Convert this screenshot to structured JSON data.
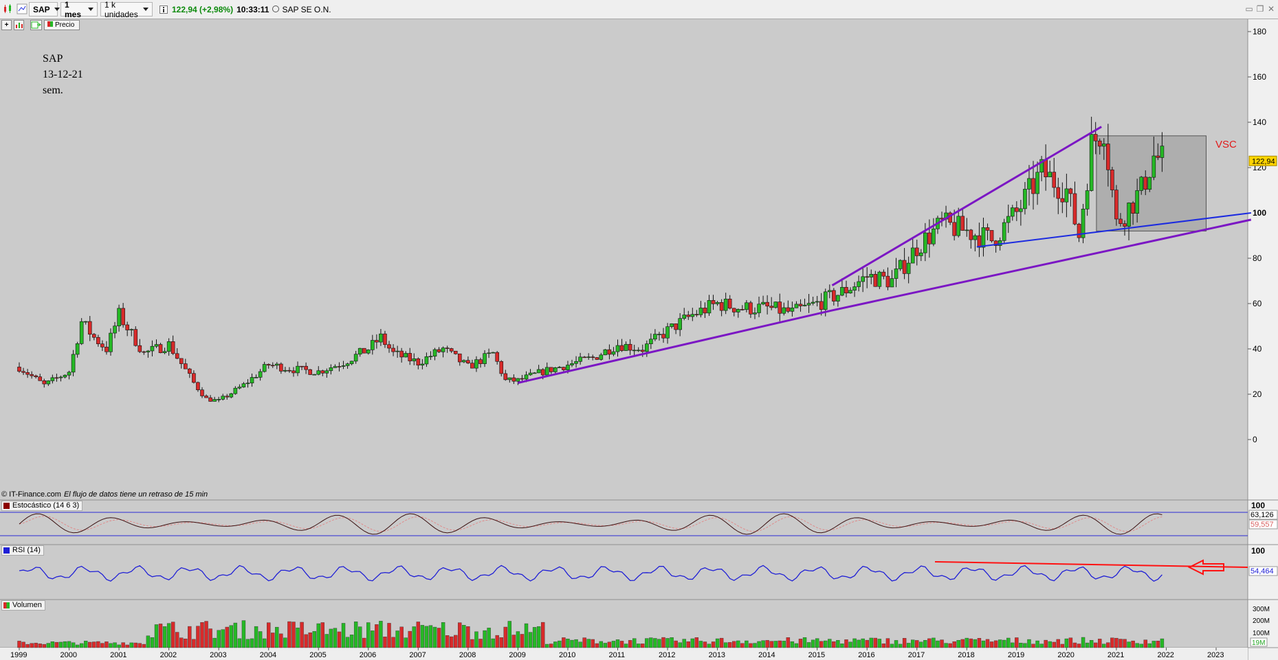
{
  "toolbar": {
    "symbol": "SAP",
    "period": "1 mes",
    "units": "1 k unidades",
    "last_quote": "122,94 (+2,98%)",
    "time": "10:33:11",
    "instrument_name": "SAP SE O.N.",
    "indicator_button": "Precio",
    "icons": [
      "candlestick-icon",
      "chart-type-icon",
      "bar-chart-icon",
      "indicator-icon",
      "add-icon",
      "window-restore-icon",
      "window-close-icon"
    ]
  },
  "annotations": {
    "note_lines": [
      "SAP",
      "13-12-21",
      "sem."
    ],
    "vsc_label": "VSC",
    "credit": "© IT-Finance.com",
    "credit_note": "El flujo de datos tiene un retraso de 15 min"
  },
  "panels": {
    "stochastic": {
      "label": "Estocástico (14 6 3)",
      "value_k": "63,126",
      "value_d": "59,557",
      "level": "100",
      "color": "#8b0000"
    },
    "rsi": {
      "label": "RSI (14)",
      "value": "54,464",
      "level": "100",
      "color": "#1f1fd6"
    },
    "volume": {
      "label": "Volumen",
      "ticks": [
        "300M",
        "200M",
        "100M"
      ],
      "value": "19M"
    }
  },
  "colors": {
    "up": "#25b825",
    "down": "#d82a2a",
    "purple_trend": "#7b16c4",
    "blue_trend": "#1c2be0",
    "rsi_trend": "#ff1111",
    "box_fill": "#a9a9a9"
  },
  "chart_data": {
    "type": "candlestick",
    "title": "",
    "y_ticks": [
      0,
      20,
      40,
      60,
      80,
      100,
      120,
      140,
      160,
      180
    ],
    "ylim": [
      -10,
      185
    ],
    "x_ticks": [
      "1999",
      "2000",
      "2001",
      "2002",
      "2003",
      "2004",
      "2005",
      "2006",
      "2007",
      "2008",
      "2009",
      "2010",
      "2011",
      "2012",
      "2013",
      "2014",
      "2015",
      "2016",
      "2017",
      "2018",
      "2019",
      "2020",
      "2021",
      "2022",
      "2023"
    ],
    "last_price_label": "122,94",
    "series": [
      {
        "name": "SAP",
        "x": [
          1999,
          1999.5,
          2000,
          2000.25,
          2000.5,
          2000.75,
          2001,
          2001.5,
          2002,
          2002.5,
          2002.75,
          2003,
          2003.5,
          2004,
          2004.5,
          2005,
          2005.5,
          2006,
          2006.25,
          2006.5,
          2007,
          2007.5,
          2008,
          2008.5,
          2008.75,
          2009,
          2009.5,
          2010,
          2010.5,
          2011,
          2011.5,
          2012,
          2012.5,
          2013,
          2013.5,
          2014,
          2014.5,
          2015,
          2015.5,
          2016,
          2016.5,
          2017,
          2017.5,
          2018,
          2018.5,
          2019,
          2019.5,
          2020,
          2020.25,
          2020.5,
          2020.75,
          2021,
          2021.5,
          2021.75,
          2021.95
        ],
        "y": [
          32,
          24,
          30,
          52,
          45,
          40,
          55,
          38,
          42,
          25,
          18,
          17,
          24,
          33,
          31,
          30,
          34,
          40,
          45,
          38,
          34,
          40,
          32,
          38,
          26,
          26,
          30,
          33,
          36,
          42,
          40,
          48,
          55,
          60,
          58,
          58,
          56,
          60,
          65,
          72,
          70,
          85,
          95,
          92,
          88,
          100,
          118,
          110,
          90,
          130,
          138,
          95,
          110,
          125,
          123
        ]
      }
    ],
    "trendlines": [
      {
        "name": "",
        "color": "purple",
        "points": [
          [
            2009,
            25
          ],
          [
            2015.3,
            57
          ],
          [
            2023.7,
            97
          ]
        ]
      },
      {
        "name": "",
        "color": "purple",
        "points": [
          [
            2015.3,
            68
          ],
          [
            2020.7,
            138
          ]
        ]
      },
      {
        "name": "",
        "color": "blue",
        "points": [
          [
            2018.2,
            85
          ],
          [
            2023.7,
            100
          ]
        ]
      }
    ],
    "box": {
      "x": [
        2020.6,
        2022.8
      ],
      "y": [
        92,
        134
      ]
    }
  }
}
